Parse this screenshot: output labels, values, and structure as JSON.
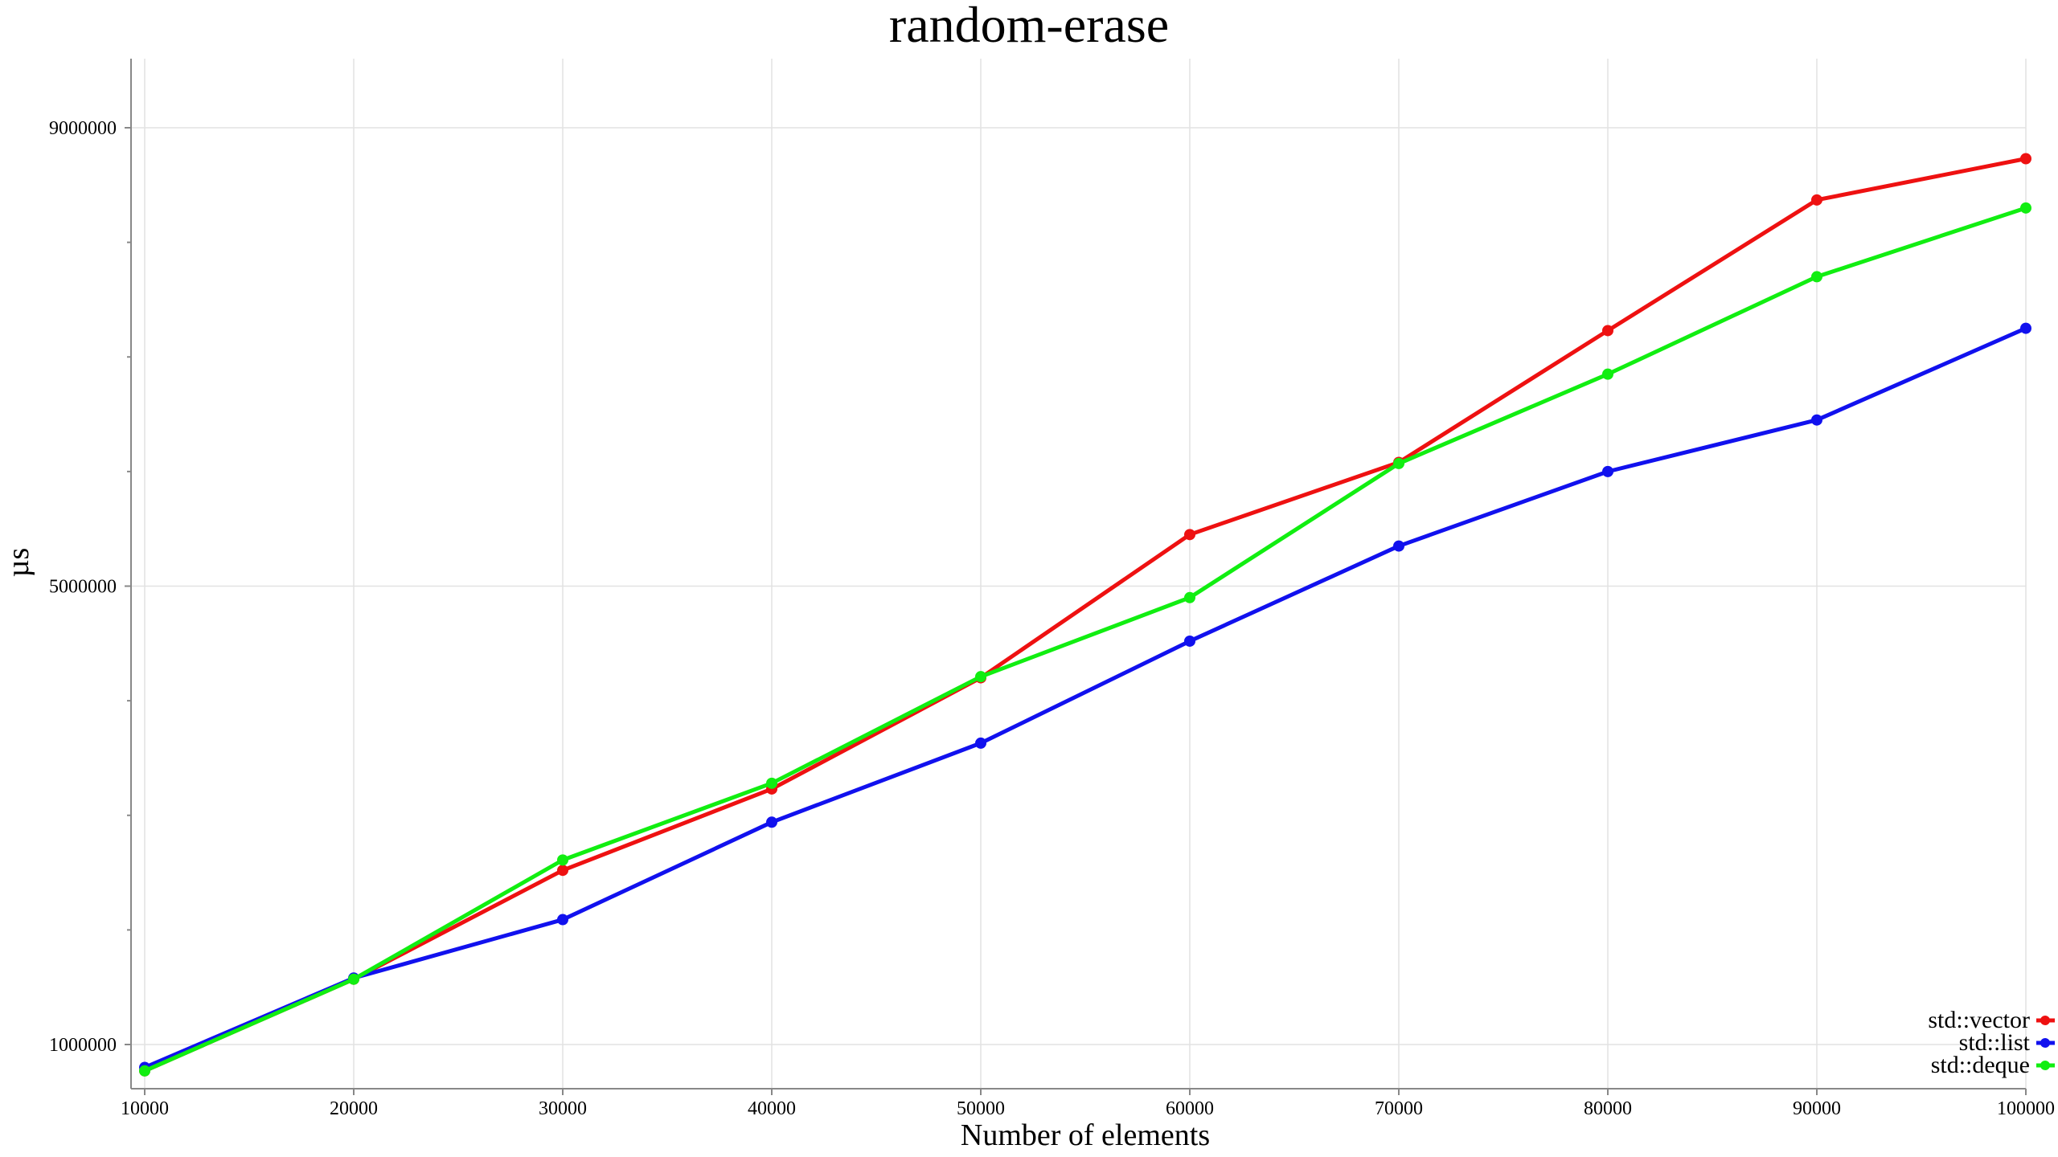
{
  "chart_data": {
    "type": "line",
    "title": "random-erase",
    "xlabel": "Number of elements",
    "ylabel": "µs",
    "x": [
      10000,
      20000,
      30000,
      40000,
      50000,
      60000,
      70000,
      80000,
      90000,
      100000
    ],
    "xticks": [
      "10000",
      "20000",
      "30000",
      "40000",
      "50000",
      "60000",
      "70000",
      "80000",
      "90000",
      "100000"
    ],
    "xlim": [
      10000,
      100000
    ],
    "yticks": [
      {
        "value": 9000000,
        "label": "9000000"
      },
      {
        "value": 5000000,
        "label": "5000000"
      },
      {
        "value": 1000000,
        "label": "1000000"
      }
    ],
    "yminor": [
      2000000,
      3000000,
      4000000,
      6000000,
      7000000,
      8000000
    ],
    "ylim": [
      600000,
      9600000
    ],
    "grid": true,
    "legend_position": "bottom-right",
    "series": [
      {
        "name": "std::vector",
        "color": "#ee1111",
        "values": [
          770000,
          1570000,
          2520000,
          3230000,
          4200000,
          5450000,
          6080000,
          7230000,
          8370000,
          8730000
        ]
      },
      {
        "name": "std::list",
        "color": "#1111ee",
        "values": [
          800000,
          1580000,
          2090000,
          2940000,
          3630000,
          4520000,
          5350000,
          6000000,
          6450000,
          7250000
        ]
      },
      {
        "name": "std::deque",
        "color": "#11ee11",
        "values": [
          770000,
          1570000,
          2610000,
          3280000,
          4210000,
          4900000,
          6070000,
          6850000,
          7700000,
          8300000
        ]
      }
    ]
  }
}
